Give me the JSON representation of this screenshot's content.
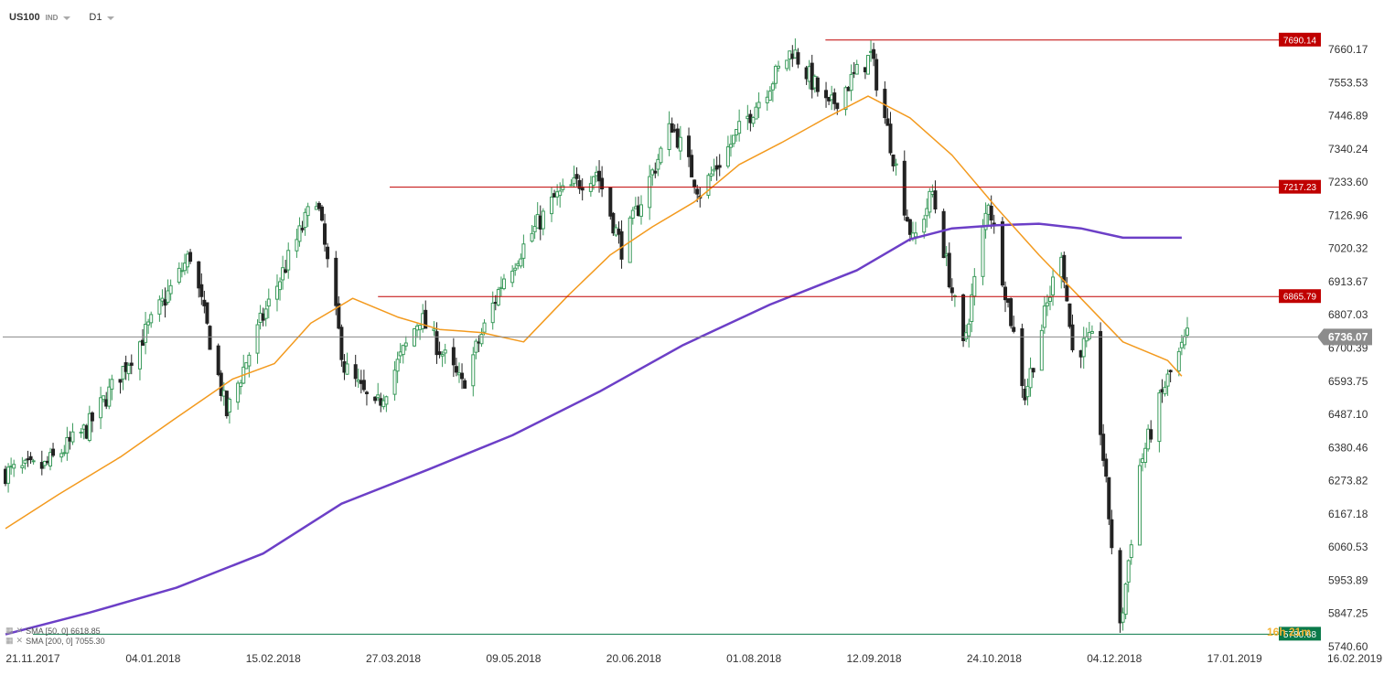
{
  "header": {
    "symbol": "US100",
    "instrument_type": "IND",
    "timeframe": "D1"
  },
  "indicators": [
    {
      "label": "SMA [50, 0] 6618.85",
      "color": "#f39a1e"
    },
    {
      "label": "SMA [200, 0] 7055.30",
      "color": "#6c3fc7"
    }
  ],
  "countdown": "16h 21m",
  "colors": {
    "up": "#3a9a5b",
    "down": "#222222",
    "level": "#c00000",
    "current": "#888888",
    "grid": "#e8e8e8"
  },
  "chart_data": {
    "type": "candlestick",
    "yaxis": {
      "ticks": [
        7660.17,
        7553.53,
        7446.89,
        7340.24,
        7233.6,
        7126.96,
        7020.32,
        6913.67,
        6807.03,
        6700.39,
        6593.75,
        6487.1,
        6380.46,
        6273.82,
        6167.18,
        6060.53,
        5953.89,
        5847.25,
        5740.6
      ],
      "tick_labels": [
        "7660.17",
        "7553.53",
        "7446.89",
        "7340.24",
        "7233.60",
        "7126.96",
        "7020.32",
        "6913.67",
        "6807.03",
        "6700.39",
        "6593.75",
        "6487.10",
        "6380.46",
        "6273.82",
        "6167.18",
        "6060.53",
        "5953.89",
        "5847.25",
        "5740.60"
      ],
      "range": [
        5740.6,
        7660.17
      ]
    },
    "xaxis": {
      "tick_labels": [
        "21.11.2017",
        "04.01.2018",
        "15.02.2018",
        "27.03.2018",
        "09.05.2018",
        "20.06.2018",
        "01.08.2018",
        "12.09.2018",
        "24.10.2018",
        "04.12.2018",
        "17.01.2019",
        "16.02.2019"
      ],
      "range": [
        "2017-11-21",
        "2019-02-16"
      ]
    },
    "horizontal_levels": [
      {
        "value": 7690.14,
        "label": "7690.14",
        "from": "2018-08-19",
        "color": "#c00000"
      },
      {
        "value": 7217.23,
        "label": "7217.23",
        "from": "2018-03-23",
        "color": "#c00000"
      },
      {
        "value": 6865.79,
        "label": "6865.79",
        "from": "2018-03-19",
        "color": "#c00000"
      },
      {
        "value": 5780.68,
        "label": "5780.68",
        "from": "2017-11-21",
        "color": "#0a7a4a"
      }
    ],
    "current_price": {
      "value": 6736.07,
      "label": "6736.07"
    },
    "sma50": [
      [
        "2017-11-21",
        6120
      ],
      [
        "2017-12-10",
        6230
      ],
      [
        "2018-01-01",
        6350
      ],
      [
        "2018-01-20",
        6470
      ],
      [
        "2018-02-10",
        6600
      ],
      [
        "2018-02-25",
        6650
      ],
      [
        "2018-03-10",
        6780
      ],
      [
        "2018-03-25",
        6860
      ],
      [
        "2018-04-10",
        6800
      ],
      [
        "2018-04-25",
        6760
      ],
      [
        "2018-05-10",
        6750
      ],
      [
        "2018-05-25",
        6720
      ],
      [
        "2018-06-10",
        6870
      ],
      [
        "2018-06-25",
        7000
      ],
      [
        "2018-07-10",
        7090
      ],
      [
        "2018-07-25",
        7170
      ],
      [
        "2018-08-10",
        7290
      ],
      [
        "2018-08-25",
        7360
      ],
      [
        "2018-09-10",
        7440
      ],
      [
        "2018-09-25",
        7510
      ],
      [
        "2018-10-10",
        7440
      ],
      [
        "2018-10-25",
        7320
      ],
      [
        "2018-11-10",
        7150
      ],
      [
        "2018-11-25",
        7000
      ],
      [
        "2018-12-10",
        6860
      ],
      [
        "2018-12-25",
        6720
      ],
      [
        "2019-01-10",
        6660
      ],
      [
        "2019-01-15",
        6610
      ]
    ],
    "sma200": [
      [
        "2017-11-21",
        5780
      ],
      [
        "2017-12-21",
        5850
      ],
      [
        "2018-01-21",
        5930
      ],
      [
        "2018-02-21",
        6040
      ],
      [
        "2018-03-21",
        6200
      ],
      [
        "2018-04-21",
        6310
      ],
      [
        "2018-05-21",
        6420
      ],
      [
        "2018-06-21",
        6560
      ],
      [
        "2018-07-21",
        6710
      ],
      [
        "2018-08-21",
        6840
      ],
      [
        "2018-09-21",
        6950
      ],
      [
        "2018-10-10",
        7050
      ],
      [
        "2018-10-25",
        7085
      ],
      [
        "2018-11-10",
        7095
      ],
      [
        "2018-11-25",
        7100
      ],
      [
        "2018-12-10",
        7085
      ],
      [
        "2018-12-25",
        7055
      ],
      [
        "2019-01-15",
        7055
      ]
    ],
    "ohlc_keypoints": [
      [
        "2017-11-21",
        6300
      ],
      [
        "2017-12-05",
        6320
      ],
      [
        "2017-12-20",
        6440
      ],
      [
        "2018-01-10",
        6750
      ],
      [
        "2018-01-26",
        7000
      ],
      [
        "2018-02-08",
        6490
      ],
      [
        "2018-02-20",
        6780
      ],
      [
        "2018-03-12",
        7190
      ],
      [
        "2018-03-22",
        6640
      ],
      [
        "2018-04-02",
        6500
      ],
      [
        "2018-04-18",
        6800
      ],
      [
        "2018-05-03",
        6580
      ],
      [
        "2018-05-18",
        6930
      ],
      [
        "2018-06-05",
        7180
      ],
      [
        "2018-06-20",
        7270
      ],
      [
        "2018-06-29",
        7020
      ],
      [
        "2018-07-17",
        7420
      ],
      [
        "2018-07-27",
        7200
      ],
      [
        "2018-08-15",
        7470
      ],
      [
        "2018-08-29",
        7660
      ],
      [
        "2018-09-11",
        7470
      ],
      [
        "2018-09-26",
        7640
      ],
      [
        "2018-10-11",
        7040
      ],
      [
        "2018-10-18",
        7200
      ],
      [
        "2018-10-29",
        6700
      ],
      [
        "2018-11-07",
        7180
      ],
      [
        "2018-11-20",
        6550
      ],
      [
        "2018-12-03",
        7020
      ],
      [
        "2018-12-07",
        6690
      ],
      [
        "2018-12-14",
        6720
      ],
      [
        "2018-12-24",
        5790
      ],
      [
        "2018-12-31",
        6320
      ],
      [
        "2019-01-09",
        6580
      ],
      [
        "2019-01-17",
        6736
      ]
    ]
  }
}
